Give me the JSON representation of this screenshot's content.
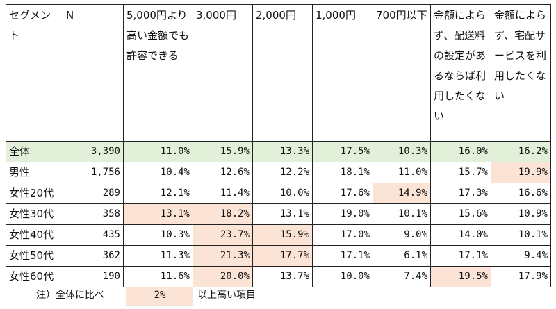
{
  "table": {
    "headers": [
      "セグメント",
      "N",
      "5,000円より高い金額でも許容できる",
      "3,000円",
      "2,000円",
      "1,000円",
      "700円以下",
      "金額によらず、配送料の設定があるならば利用したくない",
      "金額によらず、宅配サービスを利用したくない"
    ],
    "rows": [
      {
        "segment": "全体",
        "n": "3,390",
        "values": [
          "11.0%",
          "15.9%",
          "13.3%",
          "17.5%",
          "10.3%",
          "16.0%",
          "16.2%"
        ],
        "highlights": [
          false,
          false,
          false,
          false,
          false,
          false,
          false
        ]
      },
      {
        "segment": "男性",
        "n": "1,756",
        "values": [
          "10.4%",
          "12.6%",
          "12.2%",
          "18.1%",
          "11.0%",
          "15.7%",
          "19.9%"
        ],
        "highlights": [
          false,
          false,
          false,
          false,
          false,
          false,
          true
        ]
      },
      {
        "segment": "女性20代",
        "n": "289",
        "values": [
          "12.1%",
          "11.4%",
          "10.0%",
          "17.6%",
          "14.9%",
          "17.3%",
          "16.6%"
        ],
        "highlights": [
          false,
          false,
          false,
          false,
          true,
          false,
          false
        ]
      },
      {
        "segment": "女性30代",
        "n": "358",
        "values": [
          "13.1%",
          "18.2%",
          "13.1%",
          "19.0%",
          "10.1%",
          "15.6%",
          "10.9%"
        ],
        "highlights": [
          true,
          true,
          false,
          false,
          false,
          false,
          false
        ]
      },
      {
        "segment": "女性40代",
        "n": "435",
        "values": [
          "10.3%",
          "23.7%",
          "15.9%",
          "17.0%",
          "9.0%",
          "14.0%",
          "10.1%"
        ],
        "highlights": [
          false,
          true,
          true,
          false,
          false,
          false,
          false
        ]
      },
      {
        "segment": "女性50代",
        "n": "362",
        "values": [
          "11.3%",
          "21.3%",
          "17.7%",
          "17.1%",
          "6.1%",
          "17.1%",
          "9.4%"
        ],
        "highlights": [
          false,
          true,
          true,
          false,
          false,
          false,
          false
        ]
      },
      {
        "segment": "女性60代",
        "n": "190",
        "values": [
          "11.6%",
          "20.0%",
          "13.7%",
          "10.0%",
          "7.4%",
          "19.5%",
          "17.9%"
        ],
        "highlights": [
          false,
          true,
          false,
          false,
          false,
          true,
          false
        ]
      }
    ]
  },
  "note": {
    "prefix": "注）全体に比べ",
    "legend_value": "2%",
    "suffix": "以上高い項目"
  },
  "colors": {
    "total_row": "#e2efd9",
    "highlight": "#fbe3d6"
  }
}
